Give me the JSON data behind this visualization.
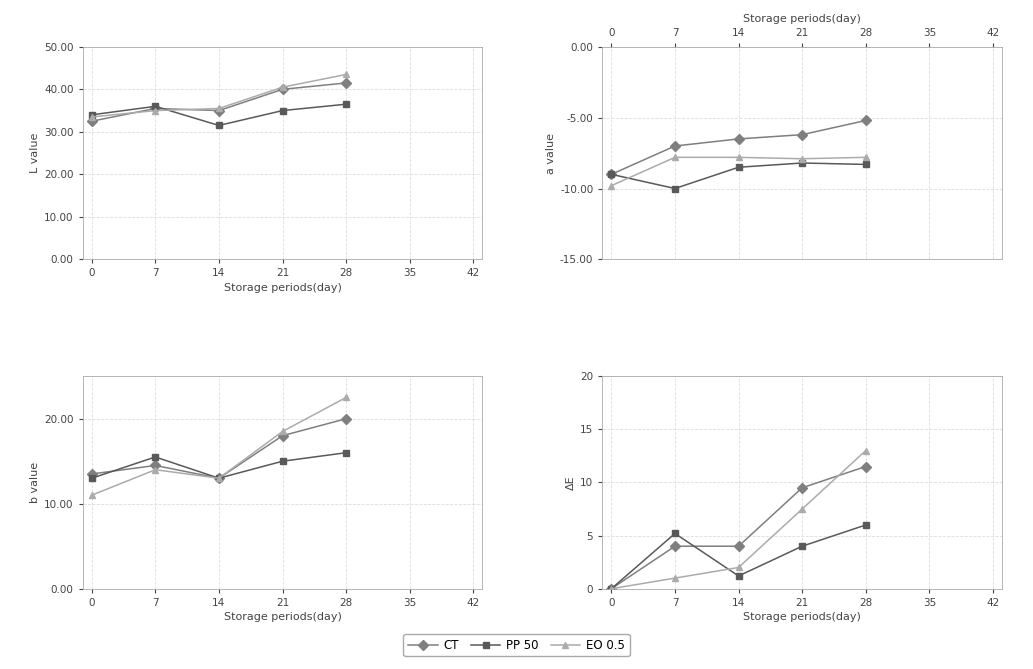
{
  "days": [
    0,
    7,
    14,
    21,
    28
  ],
  "L_CT": [
    32.5,
    35.5,
    35.0,
    40.0,
    41.5
  ],
  "L_PP50": [
    34.0,
    36.0,
    31.5,
    35.0,
    36.5
  ],
  "L_EO05": [
    33.5,
    35.0,
    35.5,
    40.5,
    43.5
  ],
  "a_CT": [
    -9.0,
    -7.0,
    -6.5,
    -6.2,
    -5.2
  ],
  "a_PP50": [
    -9.0,
    -10.0,
    -8.5,
    -8.2,
    -8.3
  ],
  "a_EO05": [
    -9.8,
    -7.8,
    -7.8,
    -7.9,
    -7.8
  ],
  "b_CT": [
    13.5,
    14.5,
    13.0,
    18.0,
    20.0
  ],
  "b_PP50": [
    13.0,
    15.5,
    13.0,
    15.0,
    16.0
  ],
  "b_EO05": [
    11.0,
    14.0,
    13.0,
    18.5,
    22.5
  ],
  "dE_CT": [
    0.0,
    4.0,
    4.0,
    9.5,
    11.5
  ],
  "dE_PP50": [
    0.0,
    5.2,
    1.2,
    4.0,
    6.0
  ],
  "dE_EO05": [
    0.0,
    1.0,
    2.0,
    7.5,
    13.0
  ],
  "color_CT": "#7f7f7f",
  "color_PP50": "#595959",
  "color_EO05": "#ababab",
  "marker_CT": "D",
  "marker_PP50": "s",
  "marker_EO05": "^",
  "xlabel": "Storage periods(day)",
  "L_ylabel": "L value",
  "a_ylabel": "a value",
  "b_ylabel": "b value",
  "dE_ylabel": "ΔE",
  "xlim": [
    -1,
    43
  ],
  "xticks": [
    0,
    7,
    14,
    21,
    28,
    35,
    42
  ],
  "L_ylim": [
    0.0,
    50.0
  ],
  "L_yticks": [
    0.0,
    10.0,
    20.0,
    30.0,
    40.0,
    50.0
  ],
  "a_ylim": [
    -15.0,
    0.0
  ],
  "a_yticks": [
    0.0,
    -5.0,
    -10.0,
    -15.0
  ],
  "b_ylim": [
    0.0,
    25.0
  ],
  "b_yticks": [
    0.0,
    10.0,
    20.0
  ],
  "dE_ylim": [
    0,
    20
  ],
  "dE_yticks": [
    0,
    5,
    10,
    15,
    20
  ],
  "linewidth": 1.1,
  "markersize": 5,
  "grid_color": "#dddddd",
  "grid_style": "--",
  "top_xlabel": "Storage periods(day)"
}
